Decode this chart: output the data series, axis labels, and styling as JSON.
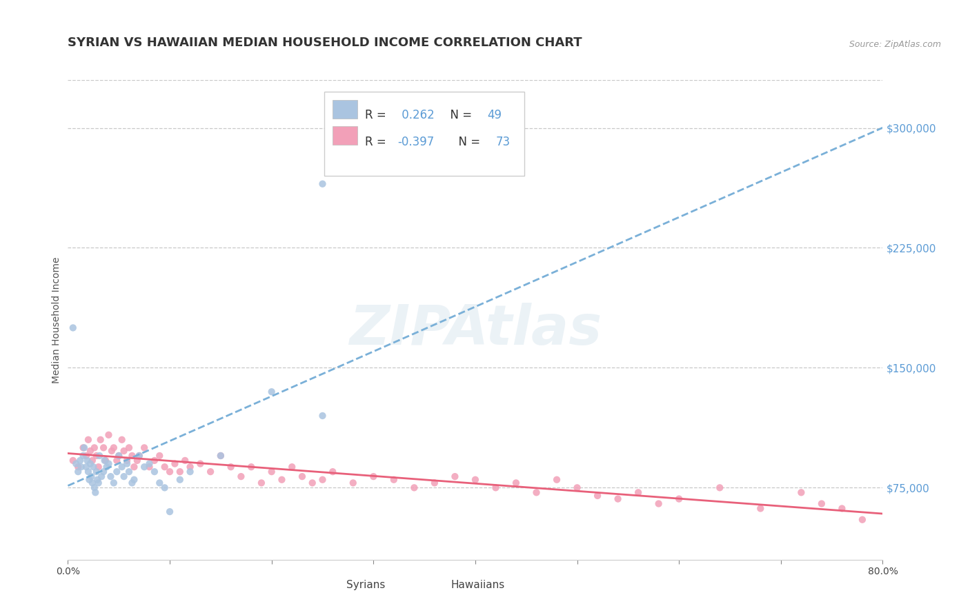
{
  "title": "SYRIAN VS HAWAIIAN MEDIAN HOUSEHOLD INCOME CORRELATION CHART",
  "source": "Source: ZipAtlas.com",
  "ylabel": "Median Household Income",
  "xlim": [
    0.0,
    0.8
  ],
  "ylim": [
    30000,
    330000
  ],
  "yticks": [
    75000,
    150000,
    225000,
    300000
  ],
  "ytick_labels": [
    "$75,000",
    "$150,000",
    "$225,000",
    "$300,000"
  ],
  "xticks": [
    0.0,
    0.1,
    0.2,
    0.3,
    0.4,
    0.5,
    0.6,
    0.7,
    0.8
  ],
  "xtick_labels": [
    "0.0%",
    "",
    "",
    "",
    "",
    "",
    "",
    "",
    "80.0%"
  ],
  "syrian_color": "#aac4e0",
  "hawaiian_color": "#f2a0b8",
  "syrian_line_color": "#7ab0d8",
  "hawaiian_line_color": "#e8607a",
  "R_syrian": 0.262,
  "N_syrian": 49,
  "R_hawaiian": -0.397,
  "N_hawaiian": 73,
  "title_fontsize": 13,
  "axis_label_fontsize": 10,
  "tick_fontsize": 10,
  "legend_fontsize": 12,
  "watermark": "ZIPAtlas",
  "background_color": "#ffffff",
  "grid_color": "#c8c8c8",
  "right_axis_label_color": "#5b9bd5",
  "syrian_scatter_x": [
    0.005,
    0.008,
    0.01,
    0.012,
    0.013,
    0.015,
    0.016,
    0.018,
    0.019,
    0.02,
    0.021,
    0.022,
    0.023,
    0.024,
    0.025,
    0.026,
    0.027,
    0.028,
    0.029,
    0.03,
    0.031,
    0.033,
    0.035,
    0.036,
    0.038,
    0.04,
    0.042,
    0.045,
    0.048,
    0.05,
    0.053,
    0.055,
    0.058,
    0.06,
    0.063,
    0.065,
    0.07,
    0.075,
    0.08,
    0.085,
    0.09,
    0.095,
    0.1,
    0.11,
    0.12,
    0.15,
    0.2,
    0.25,
    0.25
  ],
  "syrian_scatter_y": [
    175000,
    90000,
    85000,
    92000,
    88000,
    95000,
    100000,
    88000,
    92000,
    85000,
    80000,
    90000,
    82000,
    78000,
    88000,
    75000,
    72000,
    85000,
    80000,
    78000,
    95000,
    82000,
    85000,
    92000,
    88000,
    90000,
    82000,
    78000,
    85000,
    95000,
    88000,
    82000,
    90000,
    85000,
    78000,
    80000,
    95000,
    88000,
    90000,
    85000,
    78000,
    75000,
    60000,
    80000,
    85000,
    95000,
    135000,
    120000,
    265000
  ],
  "hawaiian_scatter_x": [
    0.005,
    0.01,
    0.015,
    0.018,
    0.02,
    0.022,
    0.024,
    0.026,
    0.028,
    0.03,
    0.032,
    0.035,
    0.037,
    0.04,
    0.043,
    0.045,
    0.048,
    0.05,
    0.053,
    0.055,
    0.058,
    0.06,
    0.063,
    0.065,
    0.068,
    0.07,
    0.075,
    0.08,
    0.085,
    0.09,
    0.095,
    0.1,
    0.105,
    0.11,
    0.115,
    0.12,
    0.13,
    0.14,
    0.15,
    0.16,
    0.17,
    0.18,
    0.19,
    0.2,
    0.21,
    0.22,
    0.23,
    0.24,
    0.25,
    0.26,
    0.28,
    0.3,
    0.32,
    0.34,
    0.36,
    0.38,
    0.4,
    0.42,
    0.44,
    0.46,
    0.48,
    0.5,
    0.52,
    0.54,
    0.56,
    0.58,
    0.6,
    0.64,
    0.68,
    0.72,
    0.74,
    0.76,
    0.78
  ],
  "hawaiian_scatter_y": [
    92000,
    88000,
    100000,
    95000,
    105000,
    98000,
    92000,
    100000,
    95000,
    88000,
    105000,
    100000,
    92000,
    108000,
    98000,
    100000,
    92000,
    95000,
    105000,
    98000,
    92000,
    100000,
    95000,
    88000,
    92000,
    95000,
    100000,
    88000,
    92000,
    95000,
    88000,
    85000,
    90000,
    85000,
    92000,
    88000,
    90000,
    85000,
    95000,
    88000,
    82000,
    88000,
    78000,
    85000,
    80000,
    88000,
    82000,
    78000,
    80000,
    85000,
    78000,
    82000,
    80000,
    75000,
    78000,
    82000,
    80000,
    75000,
    78000,
    72000,
    80000,
    75000,
    70000,
    68000,
    72000,
    65000,
    68000,
    75000,
    62000,
    72000,
    65000,
    62000,
    55000
  ]
}
